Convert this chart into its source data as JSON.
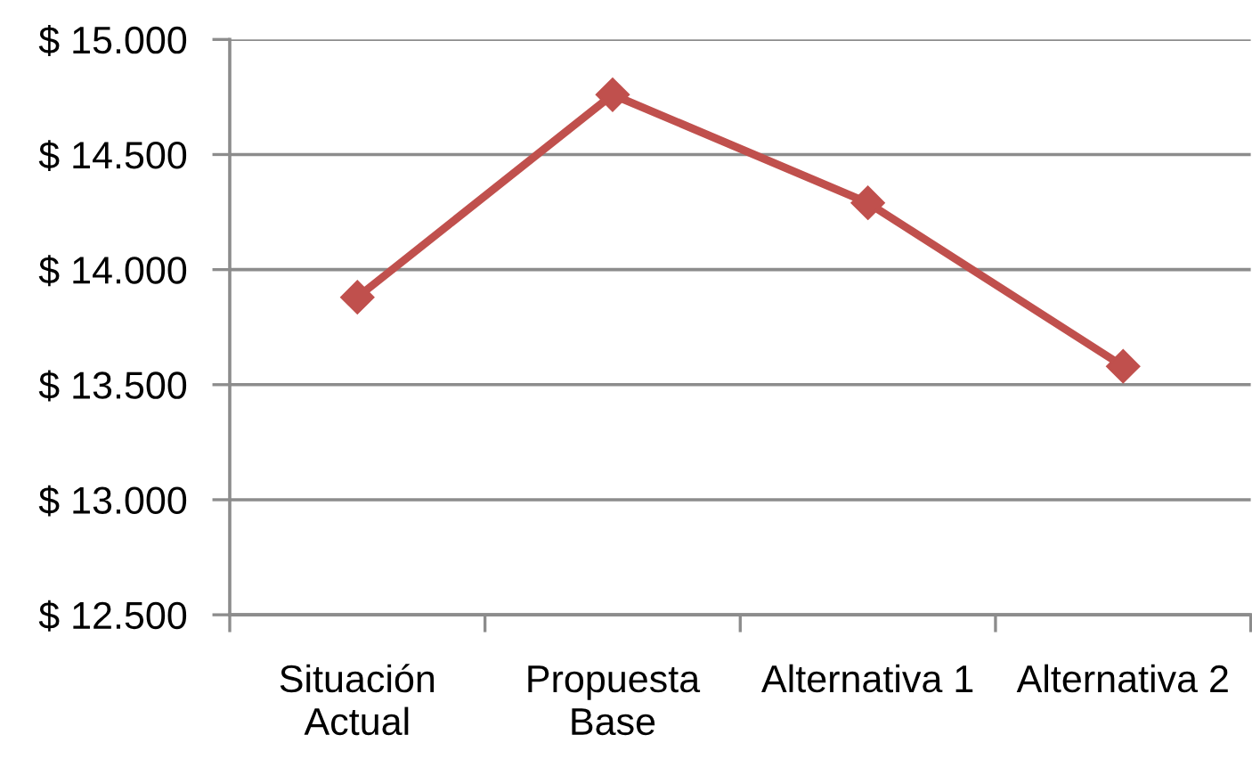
{
  "chart_data": {
    "type": "line",
    "categories": [
      "Situación\nActual",
      "Propuesta\nBase",
      "Alternativa 1",
      "Alternativa 2"
    ],
    "series": [
      {
        "color": "#c0504d",
        "values": [
          13880,
          14760,
          14290,
          13580
        ]
      }
    ],
    "ylim": [
      12500,
      15000
    ],
    "yticks": [
      {
        "value": 12500,
        "label": "$ 12.500"
      },
      {
        "value": 13000,
        "label": "$ 13.000"
      },
      {
        "value": 13500,
        "label": "$ 13.500"
      },
      {
        "value": 14000,
        "label": "$ 14.000"
      },
      {
        "value": 14500,
        "label": "$ 14.500"
      },
      {
        "value": 15000,
        "label": "$ 15.000"
      }
    ],
    "grid": "y",
    "marker": "diamond",
    "line_style": "solid"
  }
}
